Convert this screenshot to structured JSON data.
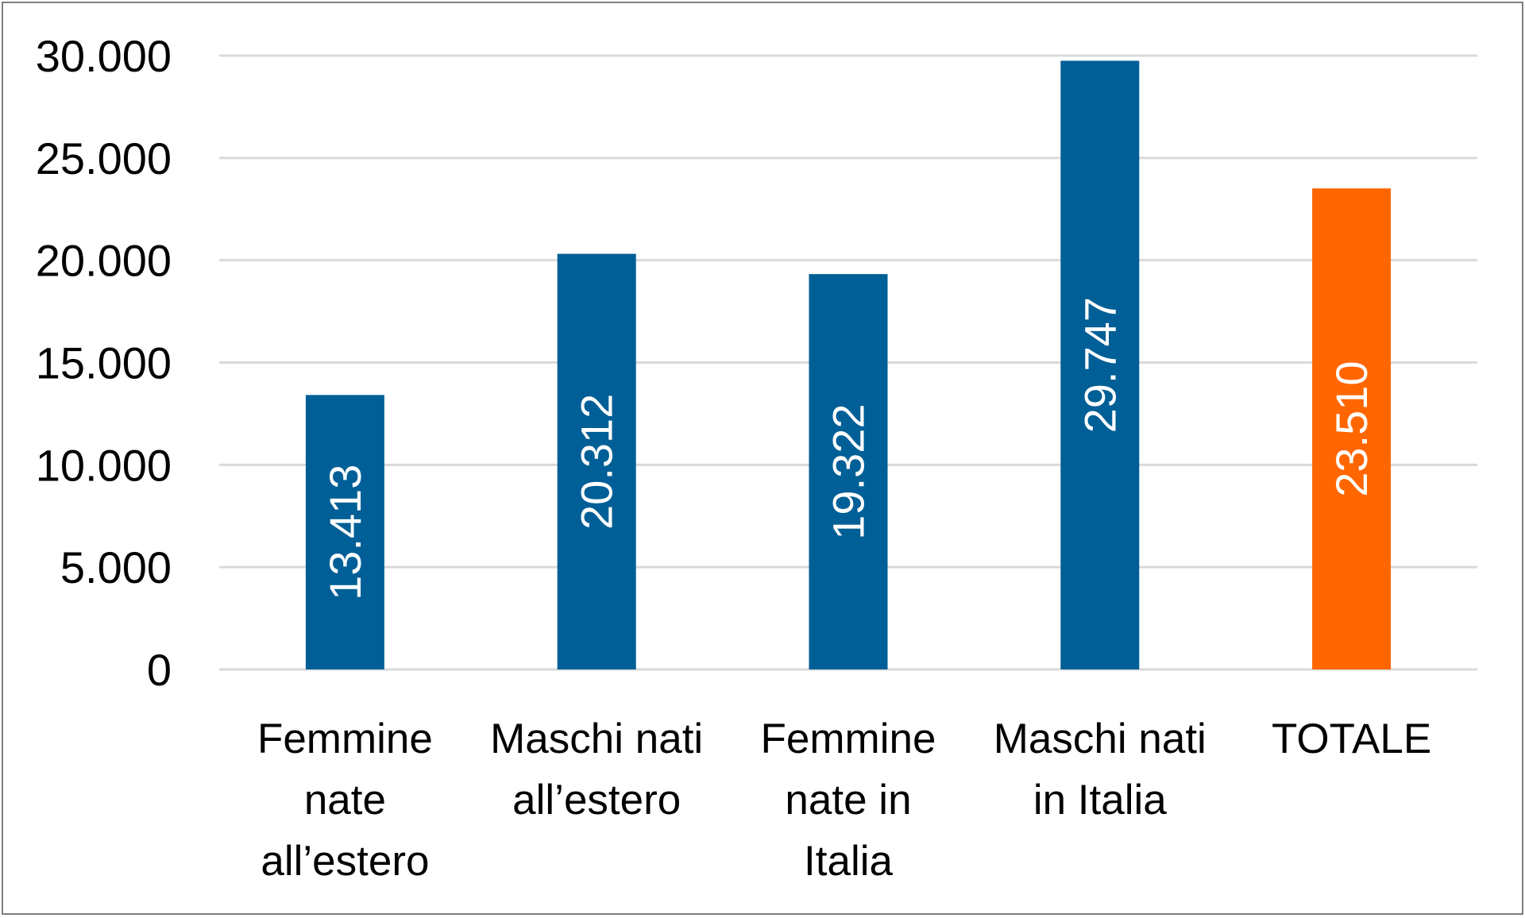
{
  "chart_data": {
    "type": "bar",
    "categories": [
      [
        "Femmine",
        "nate",
        "all’estero"
      ],
      [
        "Maschi nati",
        "all’estero"
      ],
      [
        "Femmine",
        "nate in",
        "Italia"
      ],
      [
        "Maschi nati",
        "in Italia"
      ],
      [
        "TOTALE"
      ]
    ],
    "values": [
      13413,
      20312,
      19322,
      29747,
      23510
    ],
    "data_labels": [
      "13.413",
      "20.312",
      "19.322",
      "29.747",
      "23.510"
    ],
    "bar_colors": [
      "#005f96",
      "#005f96",
      "#005f96",
      "#005f96",
      "#ff6600"
    ],
    "ylim": [
      0,
      30000
    ],
    "yticks": [
      0,
      5000,
      10000,
      15000,
      20000,
      25000,
      30000
    ],
    "ytick_labels": [
      "0",
      "5.000",
      "10.000",
      "15.000",
      "20.000",
      "25.000",
      "30.000"
    ],
    "grid": true,
    "gridline_color": "#d9d9d9",
    "title": "",
    "xlabel": "",
    "ylabel": ""
  }
}
